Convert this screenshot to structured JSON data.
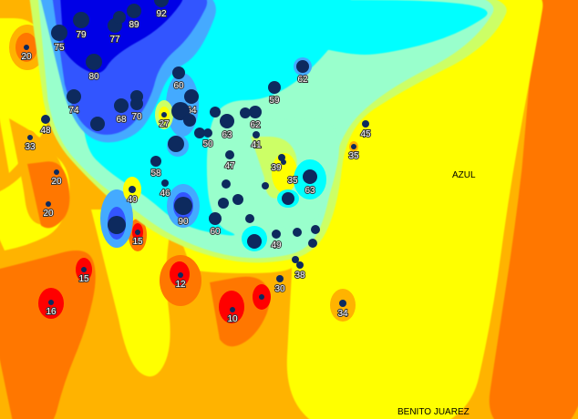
{
  "map": {
    "palette": {
      "dark_orange": "#ff7700",
      "orange": "#ffb300",
      "yellow": "#ffff00",
      "yellow_green": "#ccff66",
      "mint": "#99ffcc",
      "cyan": "#00ffff",
      "light_blue": "#44aaff",
      "blue": "#3355ff",
      "dark_blue": "#0000e6",
      "red": "#ff0000",
      "point": "#0d2a5e"
    },
    "towns": [
      {
        "name": "AZUL"
      },
      {
        "name": "BENITO JUAREZ"
      }
    ],
    "points": [
      "75",
      "79",
      "77",
      "",
      "89",
      "92",
      "80",
      "74",
      "68",
      "",
      "70",
      "",
      "20",
      "48",
      "33",
      "20",
      "20",
      "60",
      "64",
      "",
      "",
      "27",
      "",
      "58",
      "46",
      "40",
      "",
      "63",
      "",
      "50",
      "",
      "62",
      "41",
      "59",
      "62",
      "47",
      "39",
      "35",
      "",
      "",
      "",
      "",
      "60",
      "90",
      "",
      "15",
      "",
      "",
      "49",
      "",
      "",
      "",
      "63",
      "",
      "45",
      "35",
      "",
      "38",
      "30",
      "12",
      "15",
      "16",
      "10",
      "",
      "34"
    ]
  }
}
